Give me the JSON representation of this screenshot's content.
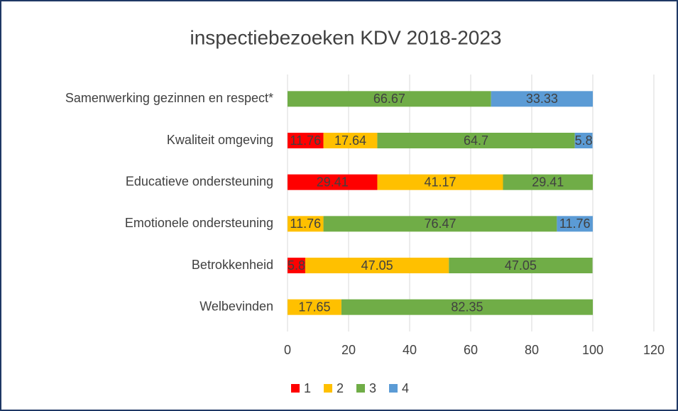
{
  "chart_data": {
    "type": "bar",
    "orientation": "horizontal",
    "stacked": true,
    "title": "inspectiebezoeken KDV 2018-2023",
    "categories": [
      "Samenwerking gezinnen en respect*",
      "Kwaliteit omgeving",
      "Educatieve ondersteuning",
      "Emotionele ondersteuning",
      "Betrokkenheid",
      "Welbevinden"
    ],
    "series": [
      {
        "name": "1",
        "color": "#ff0000",
        "values": [
          null,
          11.76,
          29.41,
          null,
          5.8,
          null
        ]
      },
      {
        "name": "2",
        "color": "#ffc000",
        "values": [
          null,
          17.64,
          41.17,
          11.76,
          47.05,
          17.65
        ]
      },
      {
        "name": "3",
        "color": "#70ad47",
        "values": [
          66.67,
          64.7,
          29.41,
          76.47,
          47.05,
          82.35
        ]
      },
      {
        "name": "4",
        "color": "#5b9bd5",
        "values": [
          33.33,
          5.8,
          null,
          11.76,
          null,
          null
        ]
      }
    ],
    "xlim": [
      0,
      120
    ],
    "xticks": [
      0,
      20,
      40,
      60,
      80,
      100,
      120
    ],
    "grid": true,
    "legend": "bottom"
  }
}
